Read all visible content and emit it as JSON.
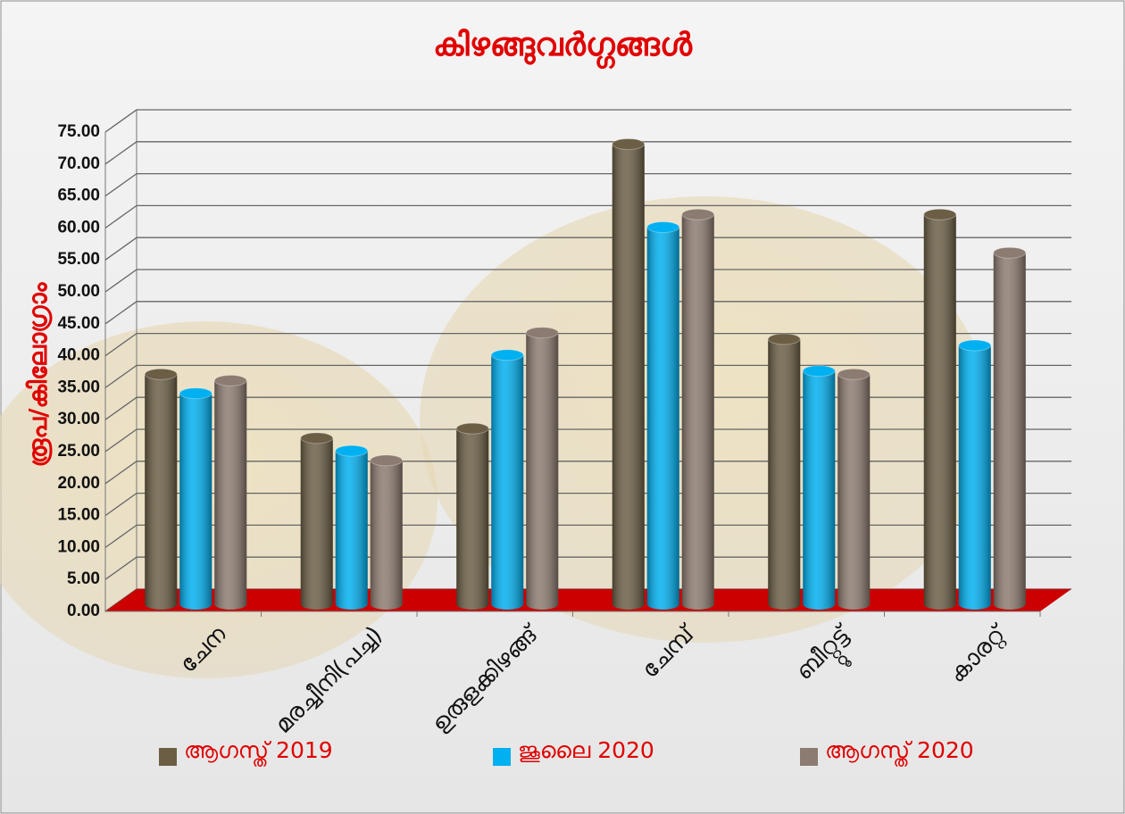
{
  "chart_data": {
    "type": "bar3d",
    "title": "കിഴങ്ങുവർഗ്ഗങ്ങൾ",
    "y_label": "രൂപ/കിലോഗ്രാം",
    "categories": [
      "ചേന",
      "മരച്ചീനി(പച്ച)",
      "ഉരുളക്കിഴങ്ങ്",
      "ചേമ്പ്",
      "ബീറ്റ്റൂട്ട്",
      "കാരറ്റ്"
    ],
    "series": [
      {
        "name": "ആഗസ്ത് 2019",
        "color": "#6b5e45",
        "values": [
          36,
          26,
          27.5,
          72,
          41.5,
          61
        ]
      },
      {
        "name": "ജൂലൈ  2020",
        "color": "#00b0f0",
        "values": [
          33,
          24,
          39,
          59,
          36.5,
          40.5
        ]
      },
      {
        "name": "ആഗസ്ത് 2020",
        "color": "#8c7b70",
        "values": [
          35,
          22.5,
          42.5,
          61,
          36,
          55
        ]
      }
    ],
    "ylim": [
      0,
      75
    ],
    "yticks": [
      {
        "value": 0,
        "label": "0.00"
      },
      {
        "value": 5,
        "label": "5.00"
      },
      {
        "value": 10,
        "label": "10.00"
      },
      {
        "value": 15,
        "label": "15.00"
      },
      {
        "value": 20,
        "label": "20.00"
      },
      {
        "value": 25,
        "label": "25.00"
      },
      {
        "value": 30,
        "label": "30.00"
      },
      {
        "value": 35,
        "label": "35.00"
      },
      {
        "value": 40,
        "label": "40.00"
      },
      {
        "value": 45,
        "label": "45.00"
      },
      {
        "value": 50,
        "label": "50.00"
      },
      {
        "value": 55,
        "label": "55.00"
      },
      {
        "value": 60,
        "label": "60.00"
      },
      {
        "value": 65,
        "label": "65.00"
      },
      {
        "value": 70,
        "label": "70.00"
      },
      {
        "value": 75,
        "label": "75.00"
      }
    ],
    "grid": true,
    "floor_color": "#cc0000",
    "text_color": "#e00000"
  }
}
